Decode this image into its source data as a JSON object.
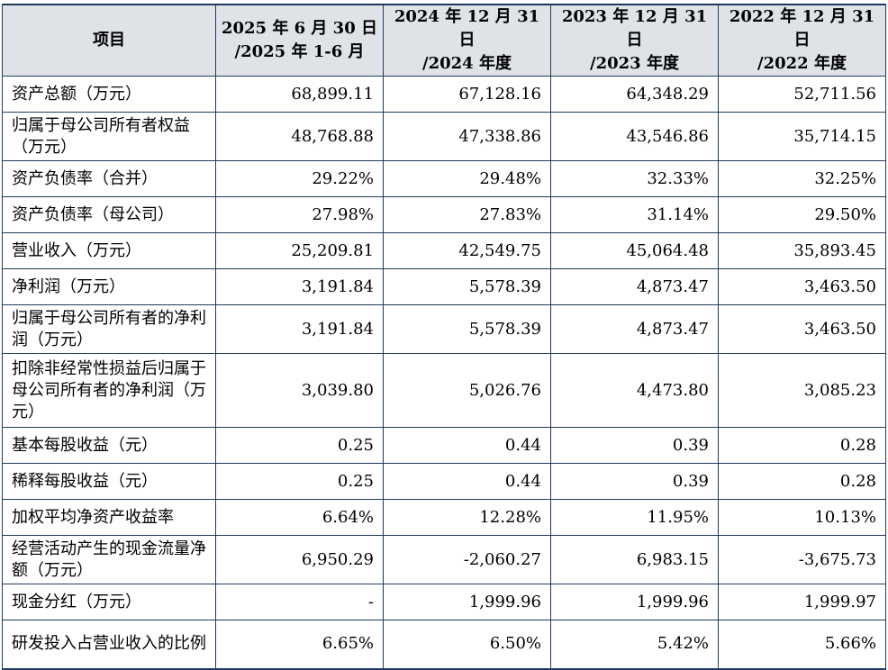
{
  "header": {
    "item": "项目",
    "cols": [
      {
        "line1": "2025 年 6 月 30 日",
        "line2": "/2025 年 1-6 月"
      },
      {
        "line1": "2024 年 12 月 31 日",
        "line2": "/2024 年度"
      },
      {
        "line1": "2023 年 12 月 31 日",
        "line2": "/2023 年度"
      },
      {
        "line1": "2022 年 12 月 31 日",
        "line2": "/2022 年度"
      }
    ]
  },
  "rows": [
    {
      "label": "资产总额（万元）",
      "values": [
        "68,899.11",
        "67,128.16",
        "64,348.29",
        "52,711.56"
      ]
    },
    {
      "label": "归属于母公司所有者权益（万元）",
      "values": [
        "48,768.88",
        "47,338.86",
        "43,546.86",
        "35,714.15"
      ]
    },
    {
      "label": "资产负债率（合并）",
      "values": [
        "29.22%",
        "29.48%",
        "32.33%",
        "32.25%"
      ]
    },
    {
      "label": "资产负债率（母公司）",
      "values": [
        "27.98%",
        "27.83%",
        "31.14%",
        "29.50%"
      ]
    },
    {
      "label": "营业收入（万元）",
      "values": [
        "25,209.81",
        "42,549.75",
        "45,064.48",
        "35,893.45"
      ]
    },
    {
      "label": "净利润（万元）",
      "values": [
        "3,191.84",
        "5,578.39",
        "4,873.47",
        "3,463.50"
      ]
    },
    {
      "label": "归属于母公司所有者的净利润（万元）",
      "values": [
        "3,191.84",
        "5,578.39",
        "4,873.47",
        "3,463.50"
      ]
    },
    {
      "label": "扣除非经常性损益后归属于母公司所有者的净利润（万元）",
      "values": [
        "3,039.80",
        "5,026.76",
        "4,473.80",
        "3,085.23"
      ]
    },
    {
      "label": "基本每股收益（元）",
      "values": [
        "0.25",
        "0.44",
        "0.39",
        "0.28"
      ]
    },
    {
      "label": "稀释每股收益（元）",
      "values": [
        "0.25",
        "0.44",
        "0.39",
        "0.28"
      ]
    },
    {
      "label": "加权平均净资产收益率",
      "values": [
        "6.64%",
        "12.28%",
        "11.95%",
        "10.13%"
      ]
    },
    {
      "label": "经营活动产生的现金流量净额（万元）",
      "values": [
        "6,950.29",
        "-2,060.27",
        "6,983.15",
        "-3,675.73"
      ]
    },
    {
      "label": "现金分红（万元）",
      "values": [
        "-",
        "1,999.96",
        "1,999.96",
        "1,999.97"
      ]
    },
    {
      "label": "研发投入占营业收入的比例",
      "values": [
        "6.65%",
        "6.50%",
        "5.42%",
        "5.66%"
      ]
    }
  ]
}
